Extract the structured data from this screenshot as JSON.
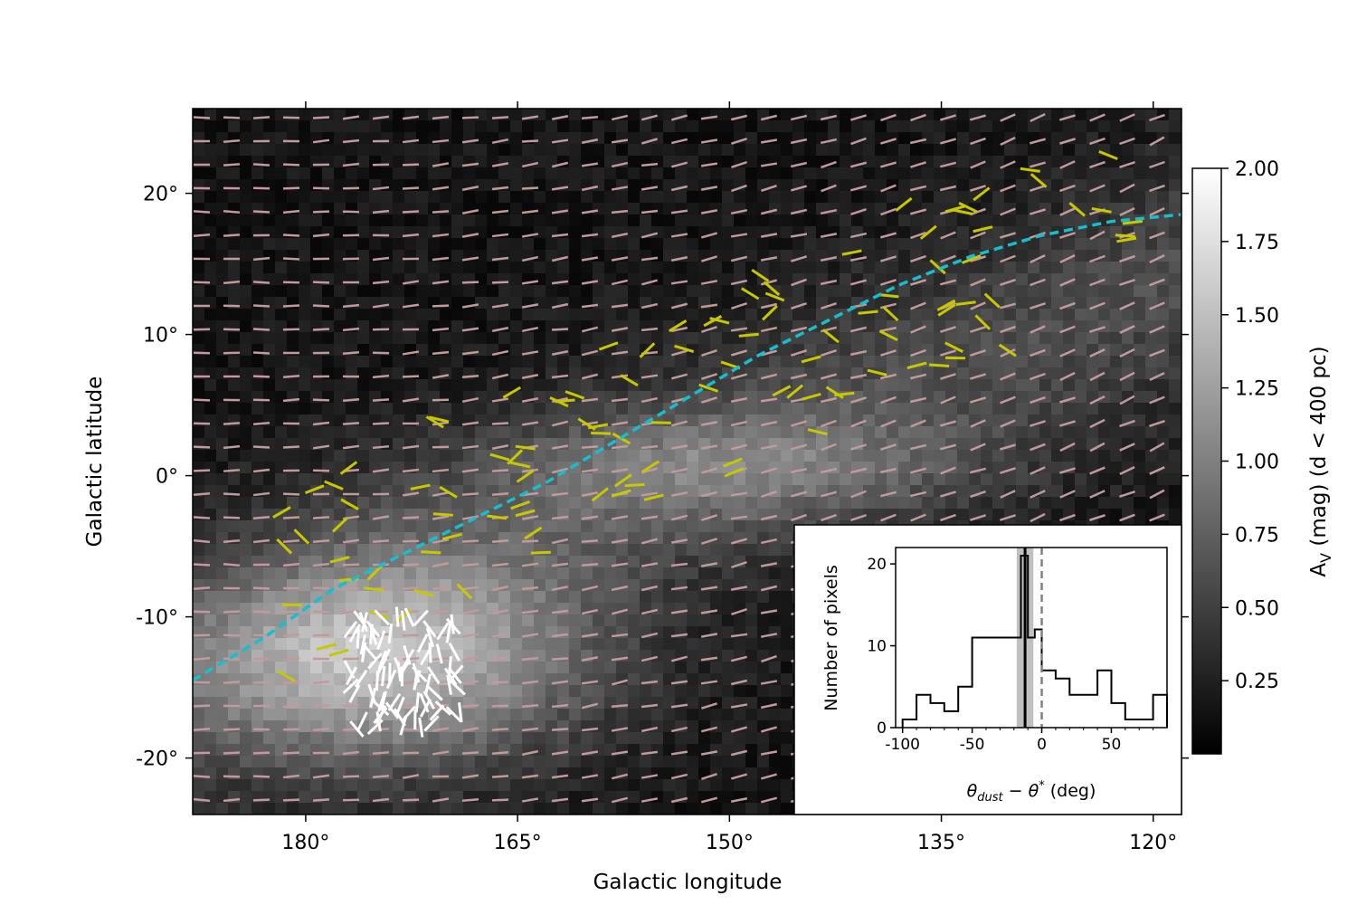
{
  "chart_data": [
    {
      "type": "heatmap",
      "description_role": "main map",
      "xlabel": "Galactic longitude",
      "ylabel": "Galactic latitude",
      "xlim": [
        188,
        118
      ],
      "ylim": [
        -24,
        26
      ],
      "x_ticks": [
        {
          "value": 180,
          "label": "180°"
        },
        {
          "value": 165,
          "label": "165°"
        },
        {
          "value": 150,
          "label": "150°"
        },
        {
          "value": 135,
          "label": "135°"
        },
        {
          "value": 120,
          "label": "120°"
        }
      ],
      "y_ticks": [
        {
          "value": 20,
          "label": "20°"
        },
        {
          "value": 10,
          "label": "10°"
        },
        {
          "value": 0,
          "label": "0°"
        },
        {
          "value": -10,
          "label": "-10°"
        },
        {
          "value": -20,
          "label": "-20°"
        }
      ],
      "colorbar": {
        "label": "A_V (mag) (d < 400 pc)",
        "range": [
          0.0,
          2.0
        ],
        "ticks": [
          "0.25",
          "0.50",
          "0.75",
          "1.00",
          "1.25",
          "1.50",
          "1.75",
          "2.00"
        ],
        "colormap": "gray"
      },
      "dashed_curve": {
        "color": "#17becf",
        "points": [
          [
            188,
            -14.5
          ],
          [
            183,
            -11.5
          ],
          [
            178,
            -8
          ],
          [
            173,
            -5.5
          ],
          [
            168,
            -3
          ],
          [
            163,
            -0.5
          ],
          [
            158,
            2.5
          ],
          [
            153,
            5.5
          ],
          [
            148,
            8.5
          ],
          [
            143,
            11
          ],
          [
            138,
            13.5
          ],
          [
            133,
            15.5
          ],
          [
            128,
            17
          ],
          [
            123,
            18
          ],
          [
            118,
            18.5
          ]
        ]
      },
      "colors": {
        "dust_vectors": "#c29a9a",
        "star_vectors_yellow": "#c8c800",
        "star_vectors_white": "#ffffff"
      }
    },
    {
      "type": "bar",
      "description_role": "inset histogram",
      "xlabel": "θ_dust − θ*  (deg)",
      "ylabel": "Number of pixels",
      "xlim": [
        -105,
        90
      ],
      "ylim": [
        0,
        22
      ],
      "x_ticks": [
        "-100",
        "-50",
        "0",
        "50"
      ],
      "y_ticks": [
        "0",
        "10",
        "20"
      ],
      "bin_edges": [
        -100,
        -90,
        -80,
        -70,
        -60,
        -50,
        -40,
        -30,
        -20,
        -15,
        -10,
        -5,
        0,
        10,
        20,
        30,
        40,
        50,
        60,
        70,
        80,
        90
      ],
      "counts": [
        1,
        4,
        3,
        2,
        5,
        11,
        11,
        11,
        11,
        21,
        11,
        12,
        7,
        6,
        4,
        4,
        7,
        3,
        1,
        1,
        4
      ],
      "vertical_lines": [
        {
          "x": -12,
          "style": "solid",
          "color": "#000000"
        },
        {
          "x": 0,
          "style": "dashed",
          "color": "#808080"
        }
      ],
      "shaded_band": {
        "from": -18,
        "to": -6,
        "color": "#b0b0b0"
      }
    }
  ]
}
